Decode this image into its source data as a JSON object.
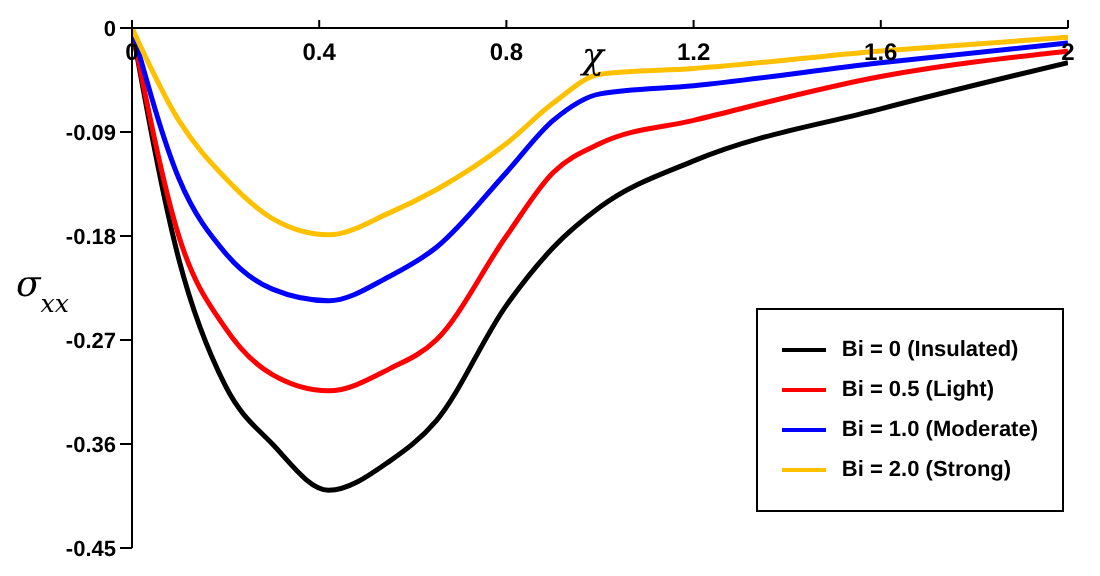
{
  "chart_data": {
    "type": "line",
    "xlabel": "χ",
    "ylabel": "σ$_{xx}$",
    "x": [
      0,
      0.1,
      0.2,
      0.3,
      0.42,
      0.55,
      0.65,
      0.8,
      0.9,
      1.0,
      1.2,
      1.6,
      2.0
    ],
    "series": [
      {
        "name": "Bi = 0 (Insulated)",
        "color": "#000000",
        "values": [
          0,
          -0.2,
          -0.31,
          -0.36,
          -0.4,
          -0.375,
          -0.34,
          -0.24,
          -0.19,
          -0.155,
          -0.115,
          -0.07,
          -0.03
        ]
      },
      {
        "name": "Bi = 0.5 (Light)",
        "color": "#ff0000",
        "values": [
          0,
          -0.18,
          -0.26,
          -0.3,
          -0.314,
          -0.295,
          -0.27,
          -0.18,
          -0.125,
          -0.1,
          -0.08,
          -0.042,
          -0.02
        ]
      },
      {
        "name": "Bi = 1.0 (Moderate)",
        "color": "#0000ff",
        "values": [
          0,
          -0.13,
          -0.195,
          -0.226,
          -0.236,
          -0.215,
          -0.19,
          -0.125,
          -0.08,
          -0.057,
          -0.05,
          -0.03,
          -0.013
        ]
      },
      {
        "name": "Bi = 2.0 (Strong)",
        "color": "#ffc000",
        "values": [
          0,
          -0.08,
          -0.13,
          -0.165,
          -0.179,
          -0.16,
          -0.14,
          -0.1,
          -0.065,
          -0.04,
          -0.035,
          -0.02,
          -0.008
        ]
      }
    ],
    "xlim": [
      0,
      2
    ],
    "xticks": [
      0,
      0.4,
      0.8,
      1.2,
      1.6,
      2
    ],
    "ylim": [
      -0.45,
      0
    ],
    "yticks": [
      -0.45,
      -0.36,
      -0.27,
      -0.18,
      -0.09,
      0
    ],
    "grid": false,
    "legend": "bottom right",
    "marker": "none",
    "line_style": "solid"
  }
}
